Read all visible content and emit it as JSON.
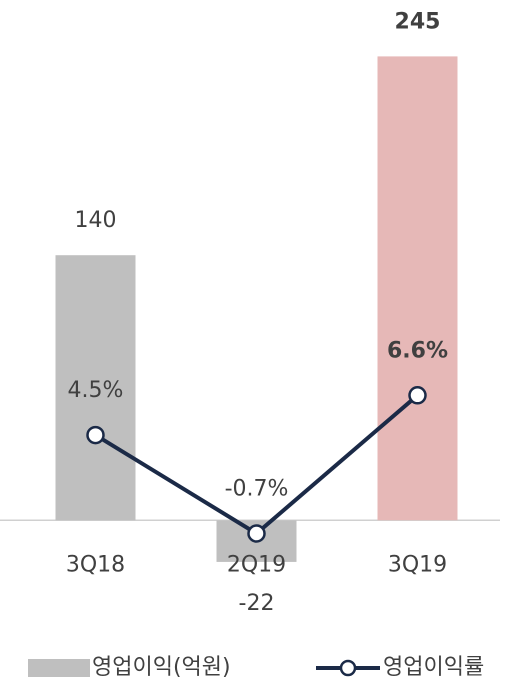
{
  "chart_data": {
    "type": "bar",
    "categories": [
      "3Q18",
      "2Q19",
      "3Q19"
    ],
    "ylim": [
      -40,
      260
    ],
    "y2lim": [
      -4,
      26
    ],
    "series": [
      {
        "name": "영업이익(억원)",
        "color": "#bfbfbf",
        "colors": [
          "#bfbfbf",
          "#bfbfbf",
          "#e6b8b7"
        ],
        "values": [
          140,
          -22,
          245
        ]
      },
      {
        "name": "영업이익률",
        "type": "line",
        "axis": "y2",
        "color": "#1b2a47",
        "values": [
          4.5,
          -0.7,
          6.6
        ],
        "value_labels": [
          "4.5%",
          "-0.7%",
          "6.6%"
        ]
      }
    ]
  }
}
